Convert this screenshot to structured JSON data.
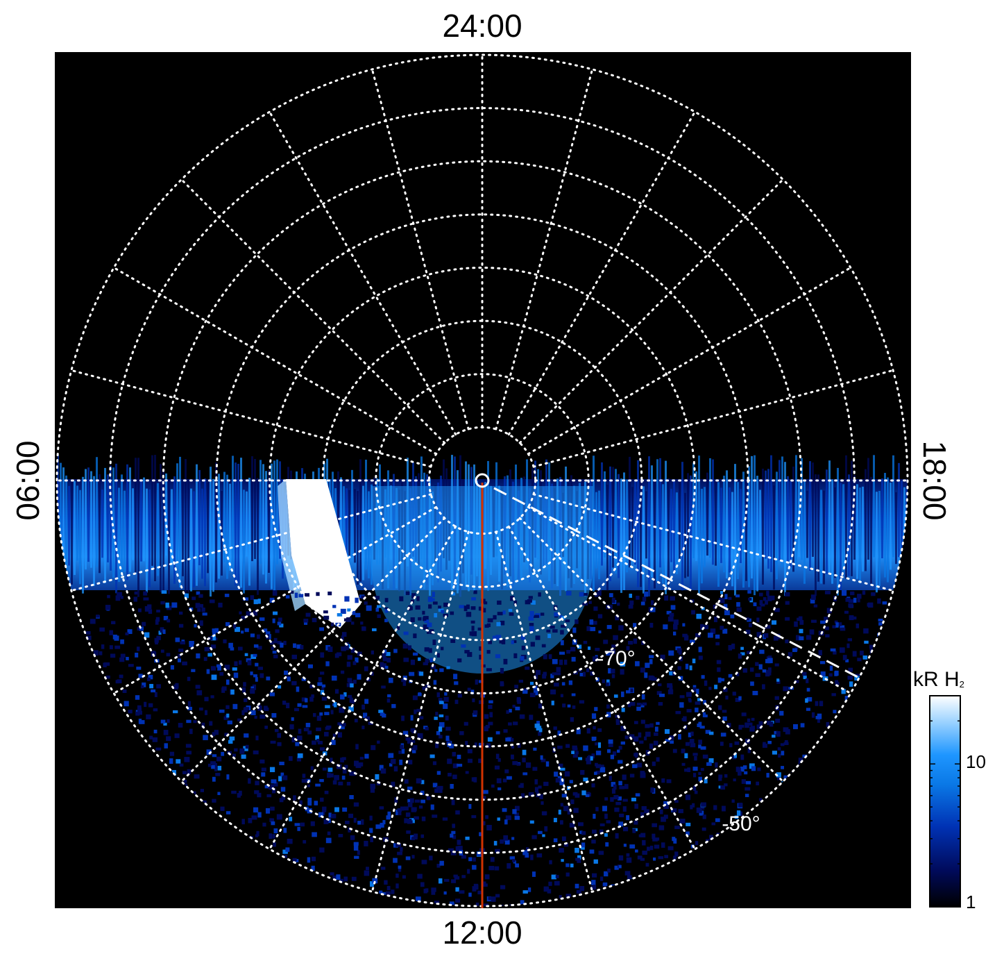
{
  "chart_data": {
    "type": "heatmap",
    "projection": "polar (south pole view)",
    "local_time_labels": {
      "top": "24:00",
      "bottom": "12:00",
      "left": "06:00",
      "right": "18:00"
    },
    "latitude_labels": [
      {
        "text": "-70°",
        "latitude": -70
      },
      {
        "text": "-50°",
        "latitude": -50
      }
    ],
    "latitude_circles_deg": [
      -85,
      -80,
      -75,
      -70,
      -65,
      -60,
      -55,
      -50
    ],
    "longitude_spokes_count": 24,
    "colorbar": {
      "title": "kR H",
      "title_subscript": "2",
      "scale": "log",
      "range": [
        1,
        30
      ],
      "ticks": [
        "1",
        "10"
      ],
      "colors": [
        "#000000",
        "#000a5a",
        "#0032b4",
        "#0a78e6",
        "#1e96ff",
        "#9fd4ff",
        "#ffffff"
      ]
    },
    "grid": "dotted white",
    "reference_line": {
      "local_time": "12:00",
      "color": "#d23200"
    },
    "dashed_line_color": "#ffffff",
    "background": "#000000"
  }
}
